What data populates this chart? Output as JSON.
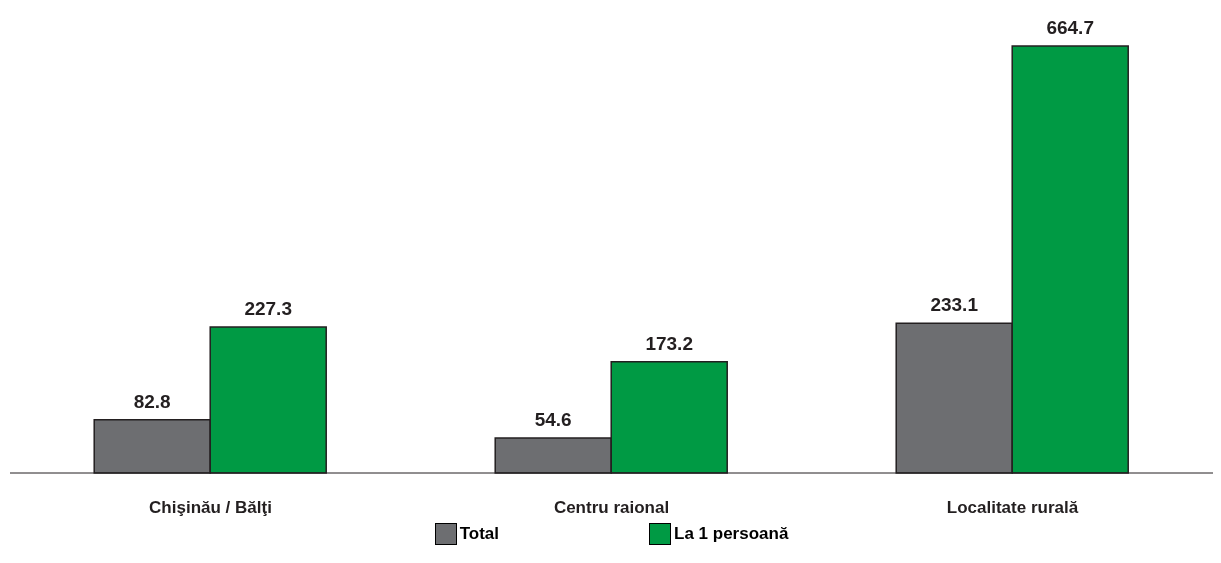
{
  "chart_data": {
    "type": "bar",
    "categories": [
      "Chişinău / Bălţi",
      "Centru raional",
      "Localitate rurală"
    ],
    "series": [
      {
        "name": "Total",
        "color": "#6d6e71",
        "values": [
          82.8,
          54.6,
          233.1
        ]
      },
      {
        "name": "La 1 persoană",
        "color": "#009a44",
        "values": [
          227.3,
          173.2,
          664.7
        ]
      }
    ],
    "data_labels": true,
    "legend": "bottom",
    "grid": false
  }
}
